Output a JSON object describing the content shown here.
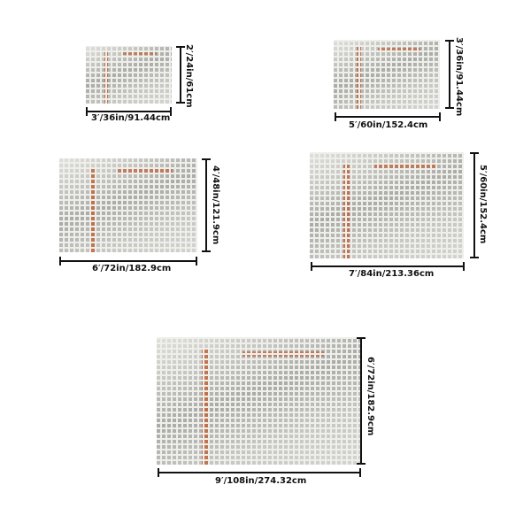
{
  "sizes": [
    {
      "width_label": "3′/36in/91.44cm",
      "height_label": "2′/24in/61cm"
    },
    {
      "width_label": "5′/60in/152.4cm",
      "height_label": "3′/36in/91.44cm"
    },
    {
      "width_label": "6′/72in/182.9cm",
      "height_label": "4′/48in/121.9cm"
    },
    {
      "width_label": "7′/84in/213.36cm",
      "height_label": "5′/60in/152.4cm"
    },
    {
      "width_label": "9′/108in/274.32cm",
      "height_label": "6′/72in/182.9cm"
    }
  ],
  "colors": {
    "accent": "#c0673f",
    "gray": "#9a9a98",
    "base": "#eeeeea"
  }
}
